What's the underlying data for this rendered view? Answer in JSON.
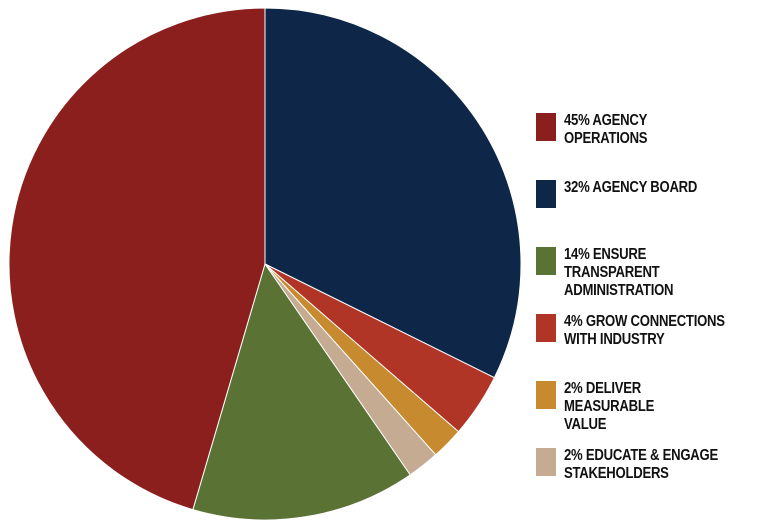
{
  "chart_data": {
    "type": "pie",
    "start_angle_deg": 0,
    "direction": "clockwise",
    "slices": [
      {
        "value": 32,
        "percent_label": "32%",
        "name": "AGENCY BOARD",
        "color": "#0e2748"
      },
      {
        "value": 4,
        "percent_label": "4%",
        "name": "GROW CONNECTIONS\nWITH INDUSTRY",
        "color": "#b03527"
      },
      {
        "value": 2,
        "percent_label": "2%",
        "name": "DELIVER MEASURABLE\nVALUE",
        "color": "#c88a2e"
      },
      {
        "value": 2,
        "percent_label": "2%",
        "name": "EDUCATE & ENGAGE\nSTAKEHOLDERS",
        "color": "#c4ab92"
      },
      {
        "value": 14,
        "percent_label": "14%",
        "name": "ENSURE TRANSPARENT\nADMINISTRATION",
        "color": "#5a7233"
      },
      {
        "value": 45,
        "percent_label": "45%",
        "name": "AGENCY OPERATIONS",
        "color": "#8b1f1e"
      }
    ]
  },
  "legend": {
    "items": [
      {
        "text": "45% AGENCY OPERATIONS",
        "color": "#8b1f1e"
      },
      {
        "text": "32% AGENCY BOARD",
        "color": "#0e2748"
      },
      {
        "text": "14% ENSURE TRANSPARENT\n      ADMINISTRATION",
        "color": "#5a7233"
      },
      {
        "text": "4% GROW CONNECTIONS\n    WITH INDUSTRY",
        "color": "#b03527"
      },
      {
        "text": "2% DELIVER MEASURABLE\n    VALUE",
        "color": "#c88a2e"
      },
      {
        "text": "2% EDUCATE & ENGAGE\n    STAKEHOLDERS",
        "color": "#c4ab92"
      }
    ]
  }
}
